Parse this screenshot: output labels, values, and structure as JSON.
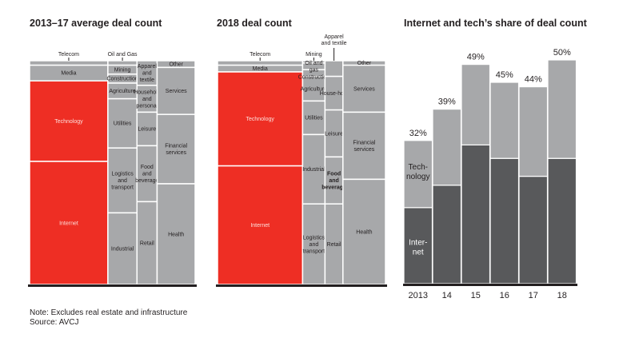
{
  "chart_data": [
    {
      "type": "treemap",
      "title": "2013–17 average deal count",
      "colors": {
        "highlight": "#ee2e24",
        "other": "#a7a8aa",
        "separator": "#ffffff",
        "baseline": "#231f20"
      },
      "columns": [
        {
          "cells": [
            {
              "name": "Telecom",
              "label_outside": true,
              "share": 2
            },
            {
              "name": "Media",
              "share": 7
            },
            {
              "name": "Technology",
              "share": 36,
              "highlight": true
            },
            {
              "name": "Internet",
              "share": 55,
              "highlight": true
            }
          ]
        },
        {
          "cells": [
            {
              "name": "Oil and Gas",
              "label_outside": true,
              "share": 2
            },
            {
              "name": "Mining",
              "share": 4
            },
            {
              "name": "Construction",
              "share": 4
            },
            {
              "name": "Agriculture",
              "share": 7
            },
            {
              "name": "Utilities",
              "share": 22
            },
            {
              "name": "Logistics and transport",
              "share": 29
            },
            {
              "name": "Industrial",
              "share": 32
            }
          ]
        },
        {
          "cells": [
            {
              "name": "Apparel and textile",
              "share": 11
            },
            {
              "name": "Household and personal",
              "share": 12
            },
            {
              "name": "Leisure",
              "share": 15
            },
            {
              "name": "Food and beverage",
              "share": 25
            },
            {
              "name": "Retail",
              "share": 37
            }
          ]
        },
        {
          "cells": [
            {
              "name": "Other",
              "share": 3
            },
            {
              "name": "Services",
              "share": 21
            },
            {
              "name": "Financial services",
              "share": 31
            },
            {
              "name": "Health",
              "share": 45
            }
          ]
        }
      ],
      "column_weights": [
        35,
        13,
        9,
        17
      ]
    },
    {
      "type": "treemap",
      "title": "2018 deal count",
      "colors": {
        "highlight": "#ee2e24",
        "other": "#a7a8aa",
        "separator": "#ffffff",
        "baseline": "#231f20"
      },
      "columns": [
        {
          "cells": [
            {
              "name": "Telecom",
              "label_outside": true,
              "share": 2
            },
            {
              "name": "Media",
              "share": 3
            },
            {
              "name": "Technology",
              "share": 42,
              "highlight": true
            },
            {
              "name": "Internet",
              "share": 53,
              "highlight": true
            }
          ]
        },
        {
          "cells": [
            {
              "name": "Mining",
              "label_outside": true,
              "share": 1
            },
            {
              "name": "Oil and gas",
              "share": 3
            },
            {
              "name": "Construction",
              "share": 3
            },
            {
              "name": "Agriculture",
              "share": 11
            },
            {
              "name": "Utilities",
              "share": 15
            },
            {
              "name": "Industrial",
              "share": 31
            },
            {
              "name": "Logistics and transport",
              "share": 36
            }
          ]
        },
        {
          "cells": [
            {
              "name": "Apparel and textile",
              "label_outside": true,
              "share": 7
            },
            {
              "name": "House-hold",
              "share": 15
            },
            {
              "name": "Leisure",
              "share": 21
            },
            {
              "name": "Food and beverage",
              "share": 21,
              "bold": true
            },
            {
              "name": "Retail",
              "share": 36
            }
          ]
        },
        {
          "cells": [
            {
              "name": "Other",
              "share": 2
            },
            {
              "name": "Services",
              "share": 21
            },
            {
              "name": "Financial services",
              "share": 30
            },
            {
              "name": "Health",
              "share": 47
            }
          ]
        }
      ],
      "column_weights": [
        38,
        10,
        8,
        19
      ]
    },
    {
      "type": "bar",
      "stacked": true,
      "title": "Internet and tech’s share of deal count",
      "categories": [
        "2013",
        "14",
        "15",
        "16",
        "17",
        "18"
      ],
      "series": [
        {
          "name": "Internet",
          "color": "#58595b",
          "values": [
            17,
            22,
            31,
            28,
            24,
            28
          ]
        },
        {
          "name": "Technology",
          "color": "#a7a8aa",
          "values": [
            15,
            17,
            18,
            17,
            20,
            22
          ]
        }
      ],
      "totals_labels": [
        "32%",
        "39%",
        "49%",
        "45%",
        "44%",
        "50%"
      ],
      "totals": [
        32,
        39,
        49,
        45,
        44,
        50
      ],
      "series_labels_in_first_bar": [
        "Inter-net",
        "Tech-nology"
      ],
      "ylim": [
        0,
        55
      ],
      "ylabel": "",
      "xlabel": "",
      "grid": false
    }
  ],
  "footer": {
    "note": "Note: Excludes real estate and infrastructure",
    "source": "Source: AVCJ"
  }
}
